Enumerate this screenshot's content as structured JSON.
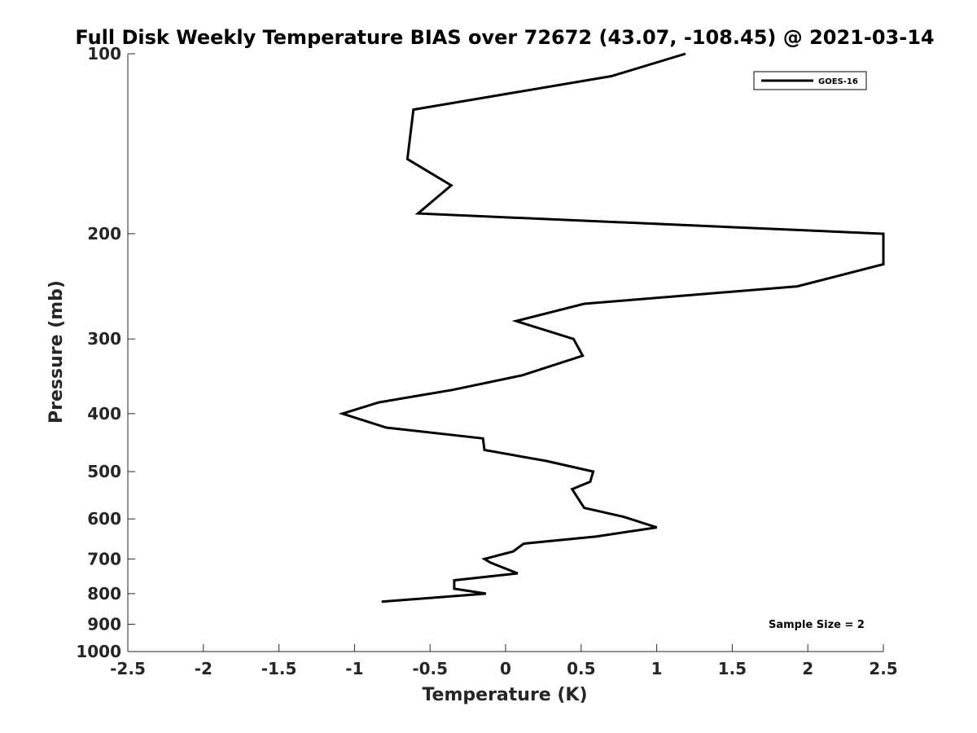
{
  "chart_data": {
    "type": "line",
    "title": "Full Disk Weekly Temperature BIAS over 72672 (43.07, -108.45) @ 2021-03-14",
    "xlabel": "Temperature (K)",
    "ylabel": "Pressure (mb)",
    "xlim": [
      -2.5,
      2.5
    ],
    "ylim": [
      100,
      1000
    ],
    "yscale": "log",
    "y_reversed": true,
    "xticks": [
      -2.5,
      -2,
      -1.5,
      -1,
      -0.5,
      0,
      0.5,
      1,
      1.5,
      2,
      2.5
    ],
    "xtick_labels": [
      "-2.5",
      "-2",
      "-1.5",
      "-1",
      "-0.5",
      "0",
      "0.5",
      "1",
      "1.5",
      "2",
      "2.5"
    ],
    "yticks": [
      100,
      200,
      300,
      400,
      500,
      600,
      700,
      800,
      900,
      1000
    ],
    "ytick_labels": [
      "100",
      "200",
      "300",
      "400",
      "500",
      "600",
      "700",
      "800",
      "900",
      "1000"
    ],
    "grid": false,
    "legend_position": "top-right",
    "series": [
      {
        "name": "GOES-16",
        "color": "#000000",
        "points": [
          [
            1.19,
            100
          ],
          [
            0.7,
            109
          ],
          [
            -0.61,
            124
          ],
          [
            -0.65,
            150
          ],
          [
            -0.36,
            166
          ],
          [
            -0.58,
            185
          ],
          [
            2.5,
            200
          ],
          [
            2.5,
            225
          ],
          [
            1.93,
            245
          ],
          [
            0.52,
            262
          ],
          [
            0.07,
            280
          ],
          [
            0.45,
            300
          ],
          [
            0.51,
            320
          ],
          [
            0.11,
            345
          ],
          [
            -0.35,
            365
          ],
          [
            -0.84,
            383
          ],
          [
            -1.08,
            400
          ],
          [
            -0.79,
            422
          ],
          [
            -0.15,
            440
          ],
          [
            -0.14,
            460
          ],
          [
            0.27,
            480
          ],
          [
            0.58,
            500
          ],
          [
            0.56,
            520
          ],
          [
            0.44,
            535
          ],
          [
            0.52,
            575
          ],
          [
            0.78,
            595
          ],
          [
            1.0,
            620
          ],
          [
            0.6,
            642
          ],
          [
            0.12,
            660
          ],
          [
            0.05,
            680
          ],
          [
            -0.14,
            700
          ],
          [
            -0.1,
            710
          ],
          [
            0.08,
            740
          ],
          [
            -0.34,
            760
          ],
          [
            -0.34,
            785
          ],
          [
            -0.13,
            800
          ],
          [
            -0.82,
            825
          ]
        ]
      }
    ],
    "annotations": [
      "Sample Size = 2"
    ]
  }
}
